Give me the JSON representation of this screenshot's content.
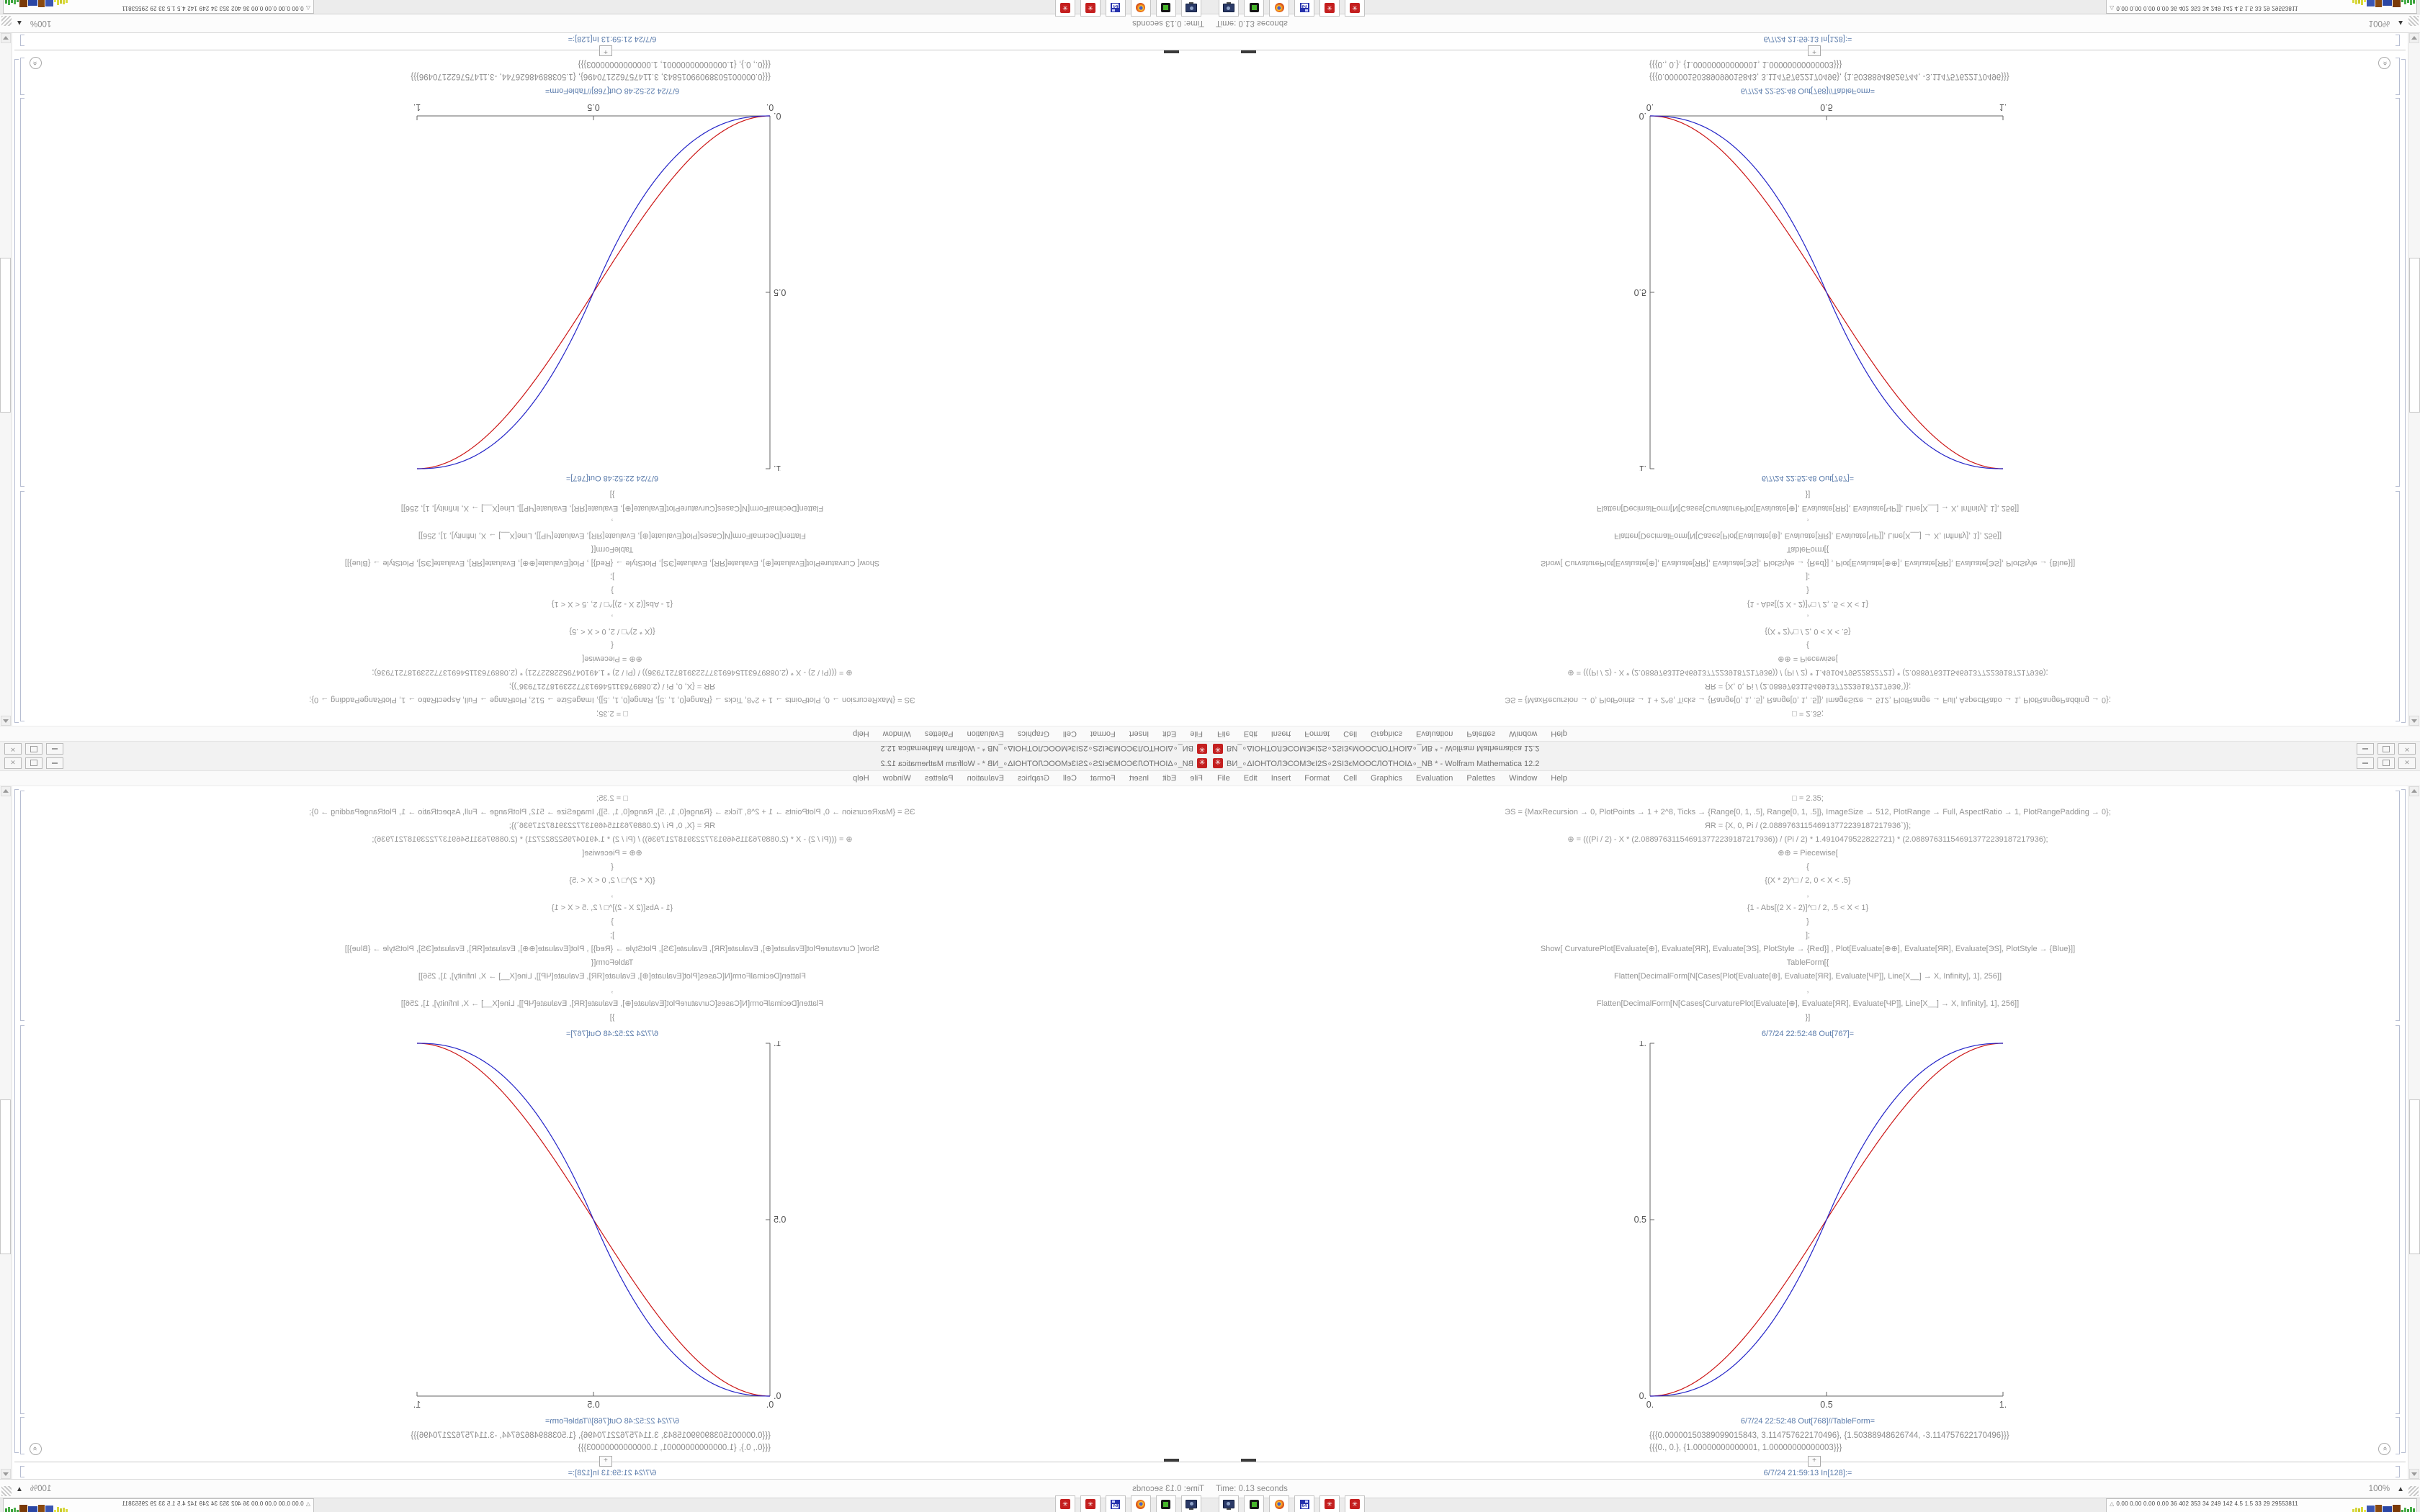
{
  "window": {
    "title": "ВИ_∘ΔІОНТОЛЭСОМЭϵІ2Ѕ∘2ЅІЗϵМООСЛОТНОІΔ∘_NB * - Wolfram Mathematica 12.2",
    "app_icon_glyph": "✳",
    "controls": {
      "minimize": "",
      "maximize": "",
      "close": "✕"
    }
  },
  "menu": {
    "items": [
      "File",
      "Edit",
      "Insert",
      "Format",
      "Cell",
      "Graphics",
      "Evaluation",
      "Palettes",
      "Window",
      "Help"
    ]
  },
  "notebook": {
    "code_lines": [
      "□ = 2.35;",
      "ЭЅ = {MaxRecursion → 0, PlotPoints → 1 + 2^8, Ticks → {Range[0, 1, .5], Range[0, 1, .5]}, ImageSize → 512, PlotRange → Full, AspectRatio → 1, PlotRangePadding → 0};",
      "ЯR = {X, 0, Pi / (2.088976311546913772239187217936`)};",
      "⊕ = (((Pi / 2) - X * (2.088976311546913772239187217936)) / (Pi / 2) * 1.4910479522822721) * (2.088976311546913772239187217936);",
      "⊕⊕ = Piecewise[",
      "{",
      "{(X * 2)^□ / 2, 0 < X < .5}",
      ",",
      "{1 - Abs[(2 X - 2)]^□ / 2, .5 < X < 1}",
      "}",
      "];",
      "Show[  CurvaturePlot[Evaluate[⊕], Evaluate[ЯR], Evaluate[ЭЅ], PlotStyle → {Red}]  ,   Plot[Evaluate[⊕⊕], Evaluate[ЯR], Evaluate[ЭЅ], PlotStyle → {Blue}]]",
      "TableForm[{",
      "Flatten[DecimalForm[N[Cases[Plot[Evaluate[⊕], Evaluate[ЯR], Evaluate[ЧР]], Line[X__] → X, Infinity], 1], 256]]",
      ",",
      "Flatten[DecimalForm[N[Cases[CurvaturePlot[Evaluate[⊕], Evaluate[ЯR], Evaluate[ЧР]], Line[X__] → X, Infinity], 1], 256]]",
      "}]"
    ],
    "out1_label": "6/7/24 22:52:48 Out[767]=",
    "out2_label": "6/7/24 22:52:48 Out[768]//TableForm=",
    "table_rows": [
      "{{{0.00000150389099015843, 3.114757622170496}, {1.50388948626744, -3.114757622170496}}}",
      "{{{0., 0.}, {1.00000000000001, 1.00000000000003}}}"
    ],
    "insert_plus": "+",
    "in_label": "6/7/24 21:59:13 In[128]:="
  },
  "chart_data": {
    "type": "line",
    "title": "",
    "xlabel": "",
    "ylabel": "",
    "xlim": [
      0,
      1
    ],
    "ylim": [
      0,
      1
    ],
    "x_ticks": [
      0,
      0.5,
      1
    ],
    "y_ticks": [
      0,
      0.5,
      1
    ],
    "x_tick_labels": [
      "0.",
      "0.5",
      "1."
    ],
    "y_tick_labels": [
      "0.",
      "0.5",
      "1."
    ],
    "grid": false,
    "legend": "none",
    "x": [
      0,
      0.05,
      0.1,
      0.15,
      0.2,
      0.25,
      0.3,
      0.35,
      0.4,
      0.45,
      0.5,
      0.55,
      0.6,
      0.65,
      0.7,
      0.75,
      0.8,
      0.85,
      0.9,
      0.95,
      1
    ],
    "series": [
      {
        "name": "CurvaturePlot result (Red)",
        "color": "#cc1616",
        "fn": "sin_squared",
        "values": [
          0,
          0.0062,
          0.0245,
          0.0545,
          0.0955,
          0.1464,
          0.2061,
          0.273,
          0.3455,
          0.4218,
          0.5,
          0.5782,
          0.6545,
          0.727,
          0.7939,
          0.8536,
          0.9045,
          0.9455,
          0.9755,
          0.9938,
          1
        ]
      },
      {
        "name": "Piecewise plot (Blue)",
        "color": "#2424c8",
        "fn": "smoothstep_pow",
        "exponent": 2.35,
        "values": [
          0,
          0.0022,
          0.0114,
          0.0295,
          0.058,
          0.098,
          0.1505,
          0.2163,
          0.296,
          0.3903,
          0.5,
          0.6097,
          0.704,
          0.7837,
          0.8495,
          0.902,
          0.942,
          0.9705,
          0.9886,
          0.9978,
          1
        ]
      }
    ]
  },
  "status_bar": {
    "left": "Time: 0.13 seconds",
    "zoom": "100%"
  },
  "taskbar": {
    "floppy_label": "64",
    "mathematica_glyph": "✳",
    "tray_icon": "△",
    "tray_text": "0.00 0.00 0.00 0.00  36  402 353  34  249 142  4.5  1.5  33  29  29553811",
    "tray_bars": [
      {
        "color": "#d8d83a",
        "w": 3,
        "h": 4
      },
      {
        "color": "#d8d83a",
        "w": 3,
        "h": 6
      },
      {
        "color": "#c8c82a",
        "w": 3,
        "h": 5
      },
      {
        "color": "#d8d83a",
        "w": 3,
        "h": 7
      },
      {
        "color": "#e8e84a",
        "w": 3,
        "h": 3
      },
      {
        "color": "#3a56b4",
        "w": 11,
        "h": 9
      },
      {
        "color": "#8a4a10",
        "w": 9,
        "h": 10
      },
      {
        "color": "#2a46a4",
        "w": 13,
        "h": 8
      },
      {
        "color": "#7a3a08",
        "w": 11,
        "h": 10
      },
      {
        "color": "#3aa03a",
        "w": 3,
        "h": 3
      },
      {
        "color": "#4ab04a",
        "w": 3,
        "h": 6
      },
      {
        "color": "#3aa03a",
        "w": 3,
        "h": 4
      },
      {
        "color": "#4ab04a",
        "w": 3,
        "h": 7
      },
      {
        "color": "#3aa03a",
        "w": 3,
        "h": 5
      }
    ]
  },
  "icons": {
    "group_expand_chevrons": "«"
  }
}
